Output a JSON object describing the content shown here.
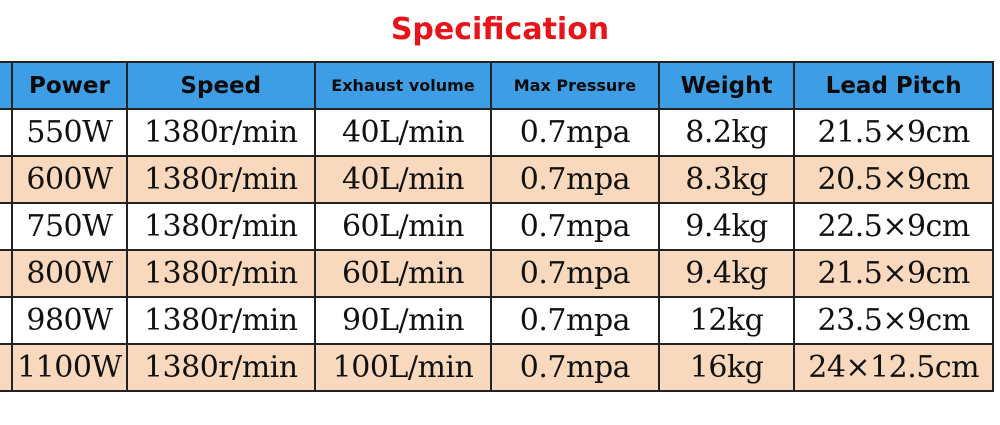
{
  "title": "Specification",
  "columns": [
    "Power",
    "Speed",
    "Exhaust volume",
    "Max Pressure",
    "Weight",
    "Lead Pitch"
  ],
  "rows": [
    [
      "550W",
      "1380r/min",
      "40L/min",
      "0.7mpa",
      "8.2kg",
      "21.5×9cm"
    ],
    [
      "600W",
      "1380r/min",
      "40L/min",
      "0.7mpa",
      "8.3kg",
      "20.5×9cm"
    ],
    [
      "750W",
      "1380r/min",
      "60L/min",
      "0.7mpa",
      "9.4kg",
      "22.5×9cm"
    ],
    [
      "800W",
      "1380r/min",
      "60L/min",
      "0.7mpa",
      "9.4kg",
      "21.5×9cm"
    ],
    [
      "980W",
      "1380r/min",
      "90L/min",
      "0.7mpa",
      "12kg",
      "23.5×9cm"
    ],
    [
      "1100W",
      "1380r/min",
      "100L/min",
      "0.7mpa",
      "16kg",
      "24×12.5cm"
    ]
  ],
  "colors": {
    "title": "#e8141c",
    "header": "#3d9ee6",
    "alt_row": "#f8d9bd"
  }
}
